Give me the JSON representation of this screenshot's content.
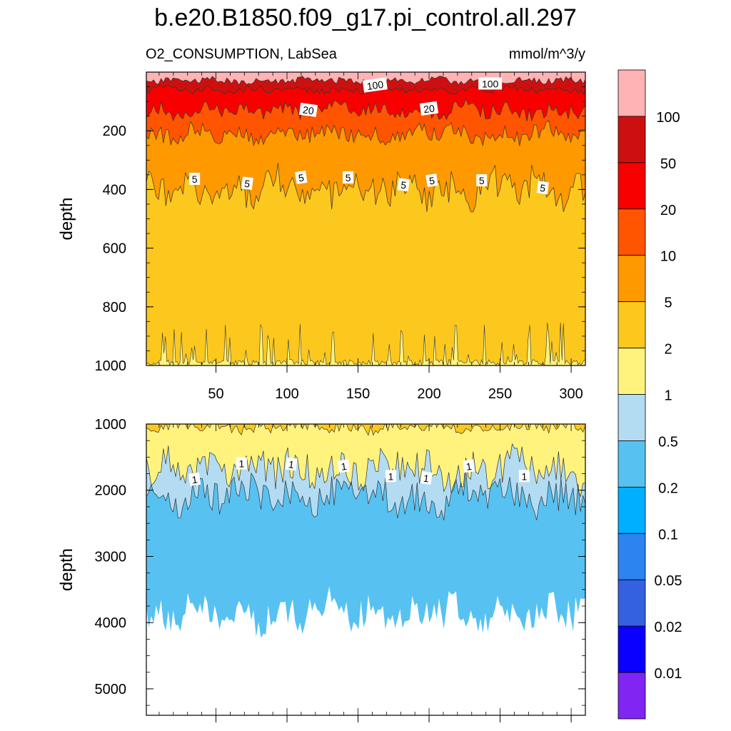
{
  "title": "b.e20.B1850.f09_g17.pi_control.all.297",
  "subtitle_left": "O2_CONSUMPTION, LabSea",
  "subtitle_right": "mmol/m^3/y",
  "chart_data": [
    {
      "type": "heatmap",
      "panel": "upper",
      "ylabel": "depth",
      "xlabel": "",
      "xlim": [
        1,
        310
      ],
      "ylim": [
        1000,
        0
      ],
      "x_ticks": [
        "50",
        "100",
        "150",
        "200",
        "250",
        "300"
      ],
      "x_tick_values": [
        50,
        100,
        150,
        200,
        250,
        300
      ],
      "y_ticks": [
        "200",
        "400",
        "600",
        "800",
        "1000"
      ],
      "y_tick_values": [
        200,
        400,
        600,
        800,
        1000
      ],
      "contour_levels_depth": {
        "above_100": [
          0,
          30
        ],
        "50_100": [
          30,
          60
        ],
        "20_50": [
          60,
          130
        ],
        "10_20": [
          130,
          210
        ],
        "5_10": [
          210,
          400
        ],
        "2_5": [
          400,
          1000
        ]
      },
      "contour_labels": [
        {
          "text": "100",
          "x": 162,
          "depth": 45
        },
        {
          "text": "100",
          "x": 243,
          "depth": 40
        },
        {
          "text": "20",
          "x": 115,
          "depth": 130
        },
        {
          "text": "20",
          "x": 200,
          "depth": 125
        },
        {
          "text": "5",
          "x": 35,
          "depth": 365
        },
        {
          "text": "5",
          "x": 72,
          "depth": 380
        },
        {
          "text": "5",
          "x": 110,
          "depth": 360
        },
        {
          "text": "5",
          "x": 143,
          "depth": 360
        },
        {
          "text": "5",
          "x": 182,
          "depth": 385
        },
        {
          "text": "5",
          "x": 202,
          "depth": 370
        },
        {
          "text": "5",
          "x": 237,
          "depth": 370
        },
        {
          "text": "5",
          "x": 280,
          "depth": 395
        }
      ]
    },
    {
      "type": "heatmap",
      "panel": "lower",
      "ylabel": "depth",
      "xlabel": "",
      "xlim": [
        1,
        310
      ],
      "ylim": [
        5400,
        1000
      ],
      "y_ticks": [
        "1000",
        "2000",
        "3000",
        "4000",
        "5000"
      ],
      "y_tick_values": [
        1000,
        2000,
        3000,
        4000,
        5000
      ],
      "contour_levels_depth": {
        "2_5": [
          1000,
          1050
        ],
        "1_2": [
          1050,
          1700
        ],
        "0.5_1": [
          1700,
          2100
        ],
        "0.2_0.5": [
          2100,
          3860
        ],
        "no_data": [
          3860,
          5400
        ]
      },
      "contour_labels": [
        {
          "text": "1",
          "x": 35,
          "depth": 1840
        },
        {
          "text": "1",
          "x": 68,
          "depth": 1600
        },
        {
          "text": "1",
          "x": 103,
          "depth": 1610
        },
        {
          "text": "1",
          "x": 140,
          "depth": 1640
        },
        {
          "text": "1",
          "x": 173,
          "depth": 1790
        },
        {
          "text": "1",
          "x": 198,
          "depth": 1820
        },
        {
          "text": "1",
          "x": 228,
          "depth": 1640
        },
        {
          "text": "1",
          "x": 267,
          "depth": 1790
        }
      ]
    }
  ],
  "colorbar": {
    "labels": [
      "100",
      "50",
      "20",
      "10",
      "5",
      "2",
      "1",
      "0.5",
      "0.2",
      "0.1",
      "0.05",
      "0.02",
      "0.01"
    ],
    "colors": [
      "#FFB3B5",
      "#CC1010",
      "#F90000",
      "#FF5500",
      "#FF9900",
      "#FCC81E",
      "#FFF37E",
      "#B3DCF3",
      "#57C2F2",
      "#00AFFF",
      "#2B84F0",
      "#3461E0",
      "#0A00FF",
      "#8125F2"
    ]
  }
}
